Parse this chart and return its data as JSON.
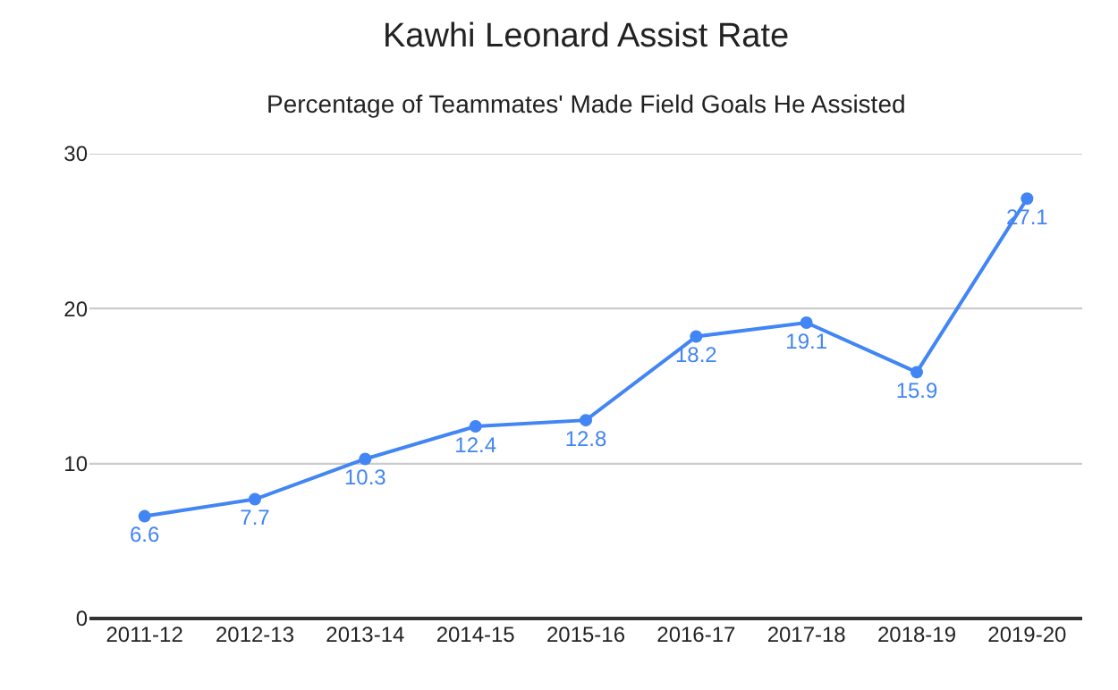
{
  "chart_data": {
    "type": "line",
    "title": "Kawhi Leonard Assist Rate",
    "subtitle": "Percentage of Teammates' Made Field Goals He Assisted",
    "categories": [
      "2011-12",
      "2012-13",
      "2013-14",
      "2014-15",
      "2015-16",
      "2016-17",
      "2017-18",
      "2018-19",
      "2019-20"
    ],
    "series": [
      {
        "color": "#4285f4",
        "values": [
          6.6,
          7.7,
          10.3,
          12.4,
          12.8,
          18.2,
          19.1,
          15.9,
          27.1
        ]
      }
    ],
    "ylim": [
      0,
      30
    ],
    "yticks": [
      0,
      10,
      20,
      30
    ],
    "grid": "y",
    "marker": "circle",
    "line_style": "solid",
    "data_labels": true
  }
}
